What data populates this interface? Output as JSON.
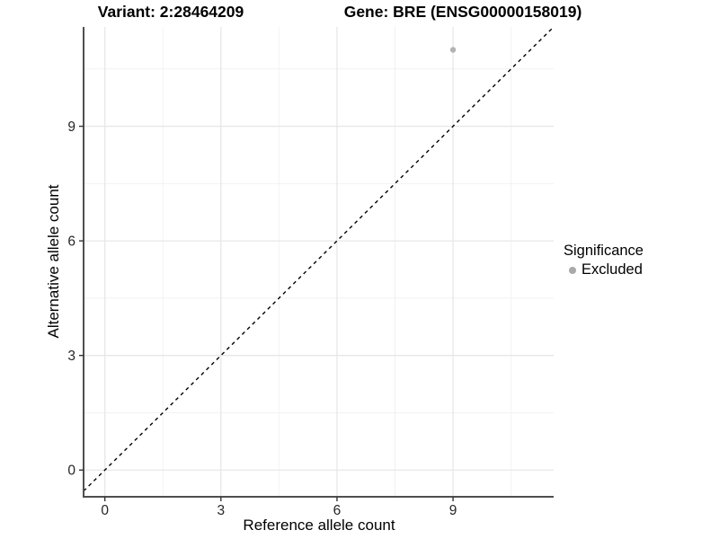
{
  "titles": {
    "variant": "Variant: 2:28464209",
    "gene": "Gene: BRE (ENSG00000158019)"
  },
  "axes": {
    "x": {
      "label": "Reference allele count",
      "ticks": [
        "0",
        "3",
        "6",
        "9"
      ]
    },
    "y": {
      "label": "Alternative allele count",
      "ticks": [
        "0",
        "3",
        "6",
        "9"
      ]
    }
  },
  "legend": {
    "title": "Significance",
    "items": [
      {
        "label": "Excluded",
        "color": "#a9a9a9",
        "symbol": "point"
      }
    ]
  },
  "colors": {
    "background": "#ffffff",
    "axis_line": "#4f4f4f",
    "tick_mark": "#333333",
    "grid_major": "#e7e7e7",
    "grid_minor": "#f2f2f2",
    "reference_line": "#000000",
    "point": "#b3b3b3",
    "text": "#000000"
  },
  "chart_data": {
    "type": "scatter",
    "title": "Variant: 2:28464209   Gene: BRE (ENSG00000158019)",
    "xlabel": "Reference allele count",
    "ylabel": "Alternative allele count",
    "xlim": [
      -0.55,
      11.6
    ],
    "ylim": [
      -0.7,
      11.6
    ],
    "x_ticks": [
      0,
      3,
      6,
      9
    ],
    "y_ticks": [
      0,
      3,
      6,
      9
    ],
    "grid": "major and minor gridlines, light gray on white panel",
    "legend_position": "right",
    "legend_title": "Significance",
    "series": [
      {
        "name": "Excluded",
        "color": "#b3b3b3",
        "points": [
          {
            "x": 9,
            "y": 11
          }
        ]
      }
    ],
    "reference_line": {
      "type": "identity y=x",
      "style": "dashed",
      "color": "#000000"
    }
  }
}
